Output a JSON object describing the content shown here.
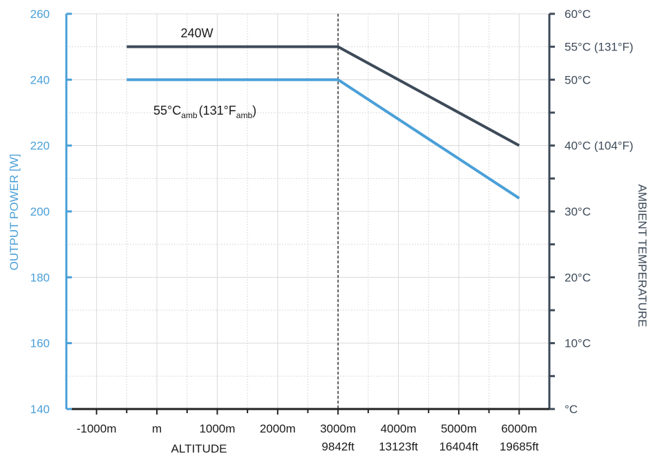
{
  "chart_data": {
    "type": "line",
    "x": [
      -500,
      3000,
      6000
    ],
    "x_unit": "m",
    "series": [
      {
        "values": [
          250,
          250,
          220
        ],
        "color": "#3d4a59"
      },
      {
        "values": [
          240,
          240,
          204
        ],
        "color": "#4a9fd8"
      }
    ],
    "xlim": [
      -1500,
      6500
    ],
    "ylim": [
      140,
      260
    ],
    "y_ticks": [
      140,
      160,
      180,
      200,
      220,
      240,
      260
    ],
    "x_ticks": [
      {
        "value": -1000,
        "label": "-1000m",
        "label2": ""
      },
      {
        "value": 0,
        "label": "m",
        "label2": ""
      },
      {
        "value": 1000,
        "label": "1000m",
        "label2": ""
      },
      {
        "value": 2000,
        "label": "2000m",
        "label2": ""
      },
      {
        "value": 3000,
        "label": "3000m",
        "label2": "9842ft"
      },
      {
        "value": 4000,
        "label": "4000m",
        "label2": "13123ft"
      },
      {
        "value": 5000,
        "label": "5000m",
        "label2": "16404ft"
      },
      {
        "value": 6000,
        "label": "6000m",
        "label2": "19685ft"
      }
    ],
    "right_axis_ticks": [
      {
        "y": 140,
        "label": "°C"
      },
      {
        "y": 160,
        "label": "10°C"
      },
      {
        "y": 180,
        "label": "20°C"
      },
      {
        "y": 200,
        "label": "30°C"
      },
      {
        "y": 220,
        "label": "40°C (104°F)"
      },
      {
        "y": 240,
        "label": "50°C"
      },
      {
        "y": 250,
        "label": "55°C (131°F)"
      },
      {
        "y": 260,
        "label": "60°C"
      }
    ],
    "vline_x": 3000,
    "xlabel": "ALTITUDE",
    "ylabel": "OUTPUT POWER [W]",
    "ylabel_right": "AMBIENT TEMPERATURE",
    "annotations": {
      "a1": "240W",
      "a2_main": "55°C",
      "a2_sub": "amb",
      "a2_mid": "(131°F",
      "a2_sub2": "amb",
      "a2_end": ")"
    },
    "grid": true,
    "colors": {
      "left_axis": "#4a9fd8",
      "right_axis": "#3d4a59",
      "grid": "#d9d9d9"
    }
  }
}
